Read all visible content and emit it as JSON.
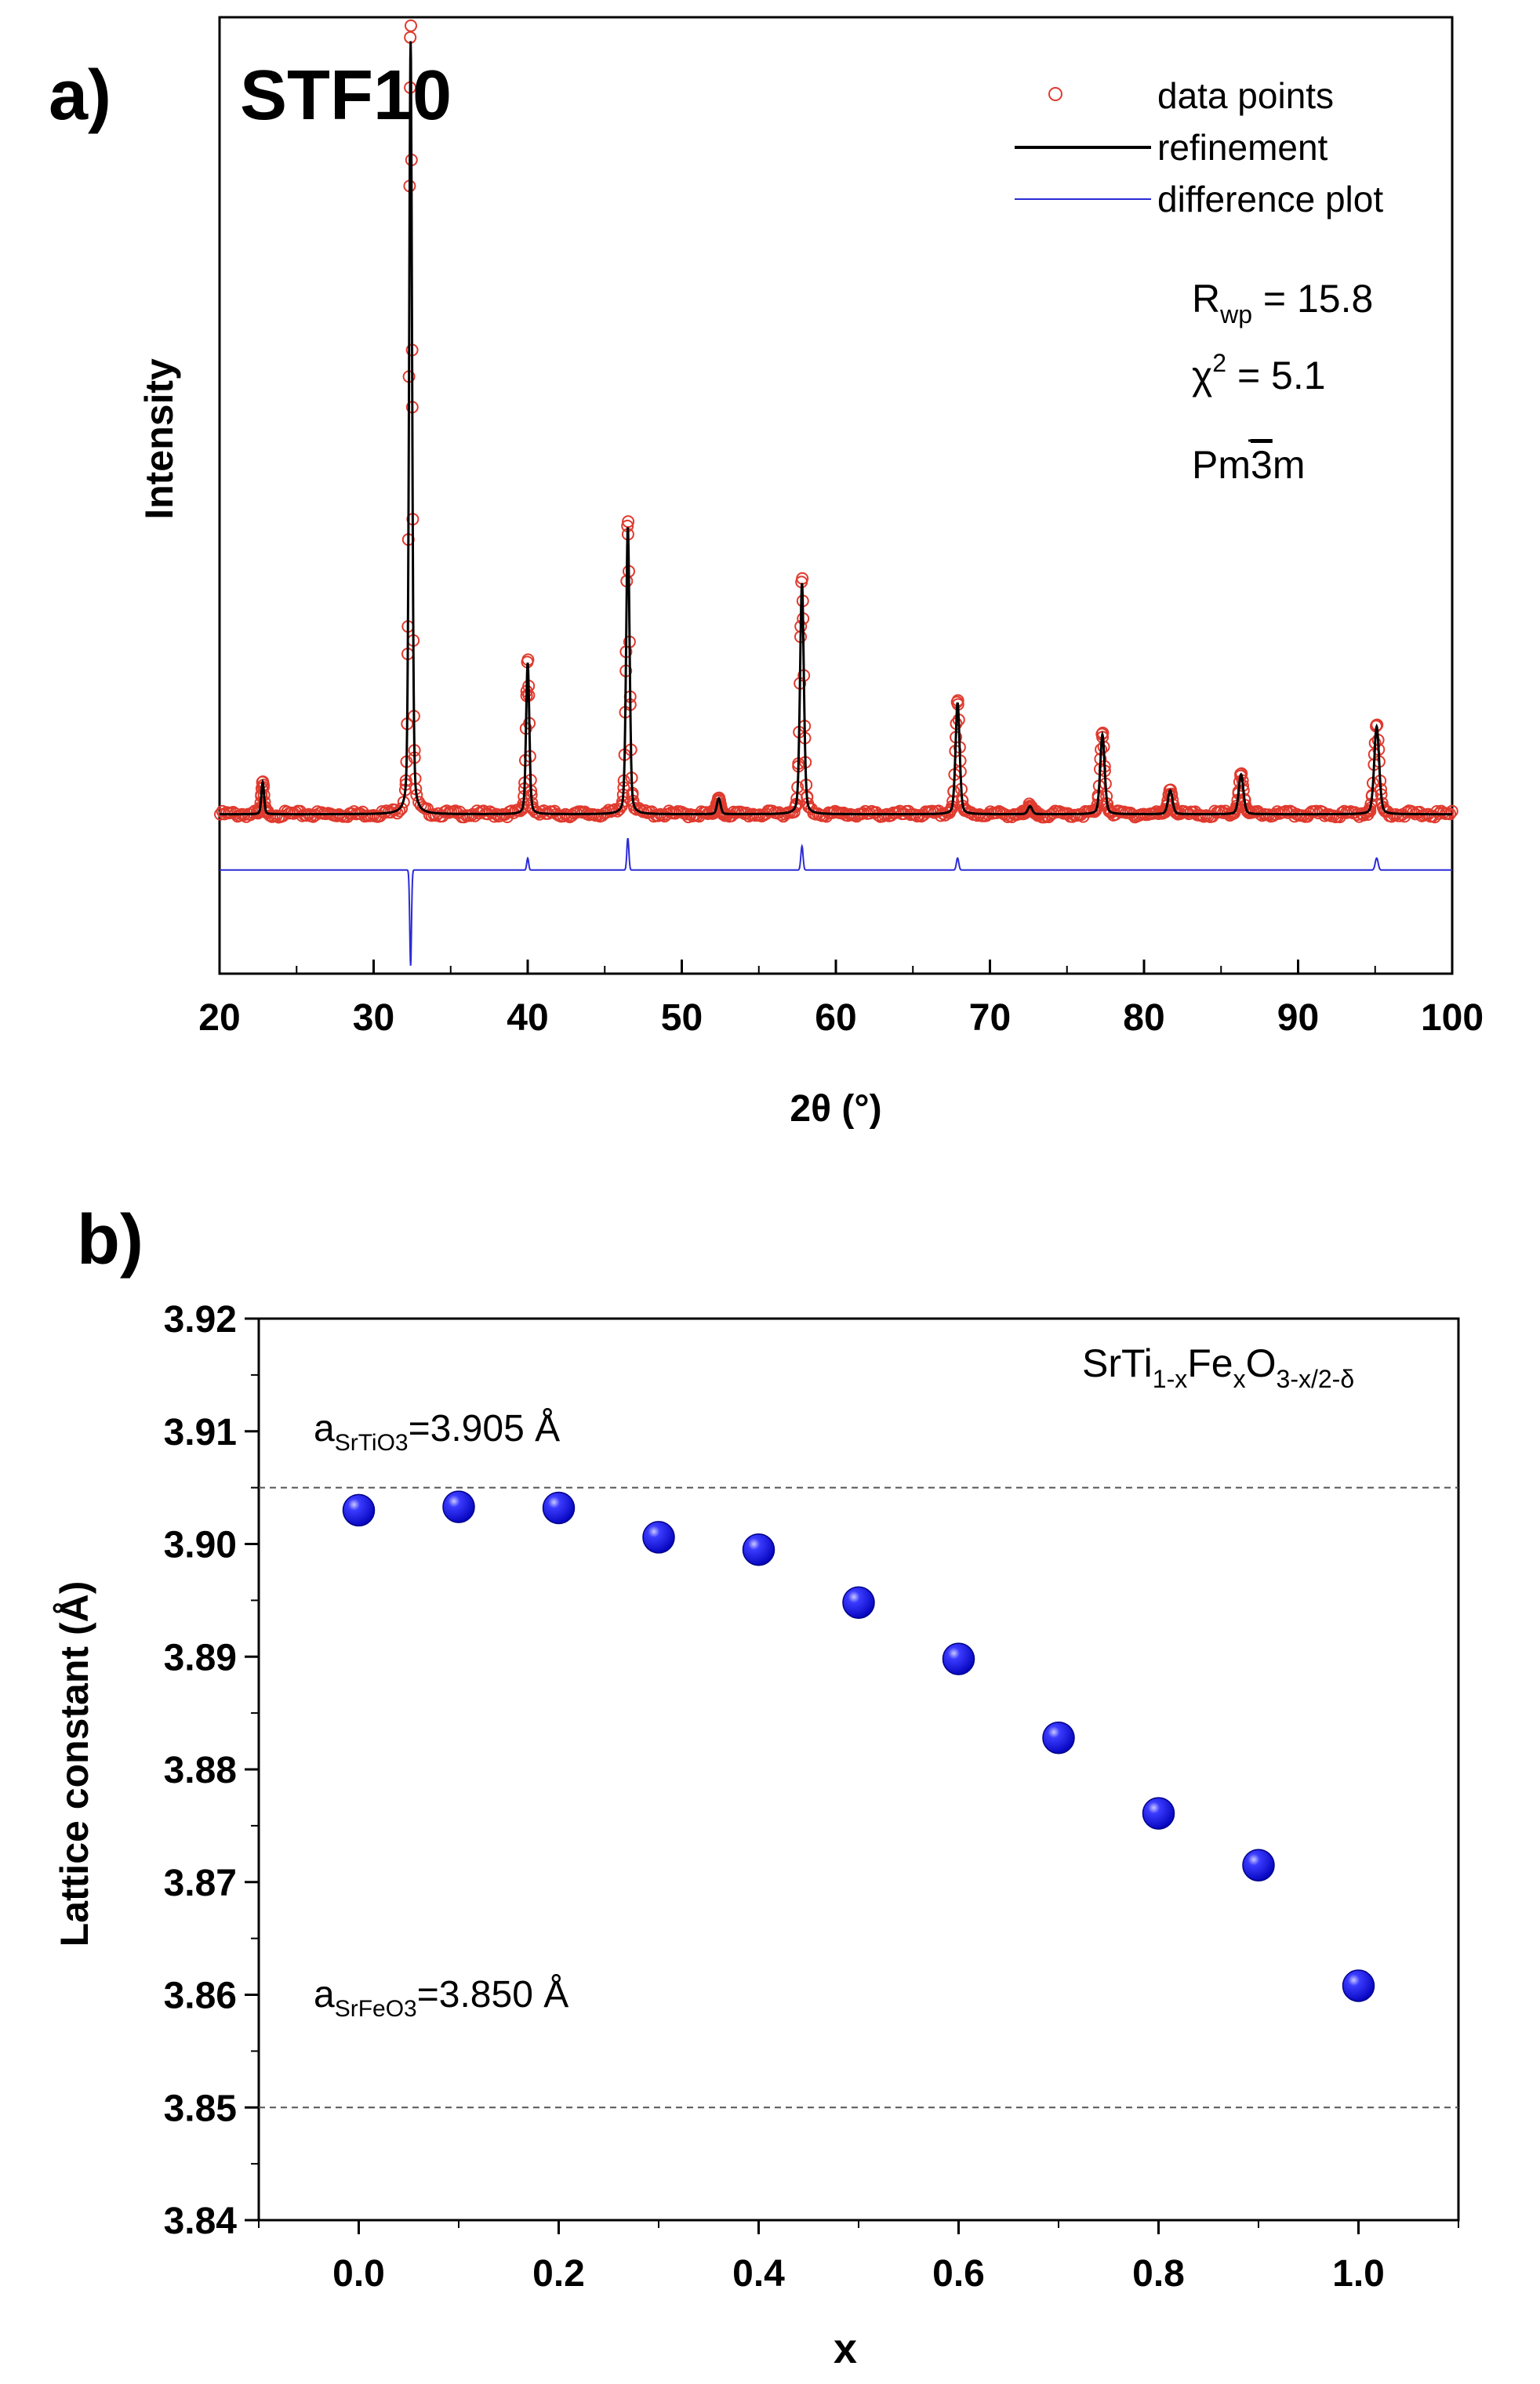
{
  "panels": {
    "a": {
      "label": "a)"
    },
    "b": {
      "label": "b)"
    }
  },
  "colors": {
    "data_points": "#e03a2e",
    "refinement": "#000000",
    "difference": "#2b2bd6",
    "markers": "#1010e8",
    "reference_lines": "#555555"
  },
  "chart_data": [
    {
      "type": "line",
      "title": "STF10",
      "xlabel": "2θ (°)",
      "ylabel": "Intensity",
      "xlim": [
        20,
        100
      ],
      "xticks": [
        20,
        30,
        40,
        50,
        60,
        70,
        80,
        90,
        100
      ],
      "ylim": [
        -0.2,
        1.0
      ],
      "yaxis_ticks_visible": false,
      "legend": {
        "placement": "top-right",
        "entries": [
          "data points",
          "refinement",
          "difference plot"
        ]
      },
      "annotations": {
        "rwp_symbol": "R",
        "rwp_sub": "wp",
        "rwp_value": " = 15.8",
        "chi_symbol": "χ",
        "chi_sup": "2",
        "chi_value": " = 5.1",
        "space_group_pre": "Pm",
        "space_group_bar": "3",
        "space_group_post": "m"
      },
      "background_level": 0.0,
      "difference_offset": -0.07,
      "peaks": [
        {
          "two_theta": 22.8,
          "intensity": 0.04
        },
        {
          "two_theta": 32.4,
          "intensity": 0.97
        },
        {
          "two_theta": 40.0,
          "intensity": 0.19
        },
        {
          "two_theta": 46.5,
          "intensity": 0.36
        },
        {
          "two_theta": 52.4,
          "intensity": 0.02
        },
        {
          "two_theta": 57.8,
          "intensity": 0.29
        },
        {
          "two_theta": 67.9,
          "intensity": 0.14
        },
        {
          "two_theta": 72.6,
          "intensity": 0.01
        },
        {
          "two_theta": 77.3,
          "intensity": 0.1
        },
        {
          "two_theta": 81.7,
          "intensity": 0.03
        },
        {
          "two_theta": 86.3,
          "intensity": 0.05
        },
        {
          "two_theta": 95.1,
          "intensity": 0.11
        }
      ],
      "difference_features": [
        {
          "two_theta": 32.4,
          "value": -0.12
        },
        {
          "two_theta": 40.0,
          "value": 0.015
        },
        {
          "two_theta": 46.5,
          "value": 0.04
        },
        {
          "two_theta": 57.8,
          "value": 0.03
        },
        {
          "two_theta": 67.9,
          "value": 0.015
        },
        {
          "two_theta": 95.1,
          "value": 0.015
        }
      ]
    },
    {
      "type": "scatter",
      "title": "",
      "xlabel": "x",
      "ylabel": "Lattice constant (Å)",
      "xlim": [
        -0.1,
        1.1
      ],
      "ylim": [
        3.84,
        3.92
      ],
      "xticks": [
        0.0,
        0.2,
        0.4,
        0.6,
        0.8,
        1.0
      ],
      "xtick_labels": [
        "0.0",
        "0.2",
        "0.4",
        "0.6",
        "0.8",
        "1.0"
      ],
      "yticks": [
        3.84,
        3.85,
        3.86,
        3.87,
        3.88,
        3.89,
        3.9,
        3.91,
        3.92
      ],
      "ytick_labels": [
        "3.84",
        "3.85",
        "3.86",
        "3.87",
        "3.88",
        "3.89",
        "3.90",
        "3.91",
        "3.92"
      ],
      "x": [
        0.0,
        0.1,
        0.2,
        0.3,
        0.4,
        0.5,
        0.6,
        0.7,
        0.8,
        0.9,
        1.0
      ],
      "y": [
        3.903,
        3.9033,
        3.9032,
        3.9006,
        3.8995,
        3.8948,
        3.8898,
        3.8828,
        3.8761,
        3.8715,
        3.8608
      ],
      "formula": {
        "p1": "SrTi",
        "s1": "1-x",
        "p2": "Fe",
        "s2": "x",
        "p3": "O",
        "s3": "3-x/2-δ"
      },
      "reference_lines": [
        {
          "y": 3.905,
          "label_main": "a",
          "label_sub": "SrTiO3",
          "label_value": "=3.905 Å"
        },
        {
          "y": 3.85,
          "label_main": "a",
          "label_sub": "SrFeO3",
          "label_value": "=3.850 Å"
        }
      ]
    }
  ]
}
